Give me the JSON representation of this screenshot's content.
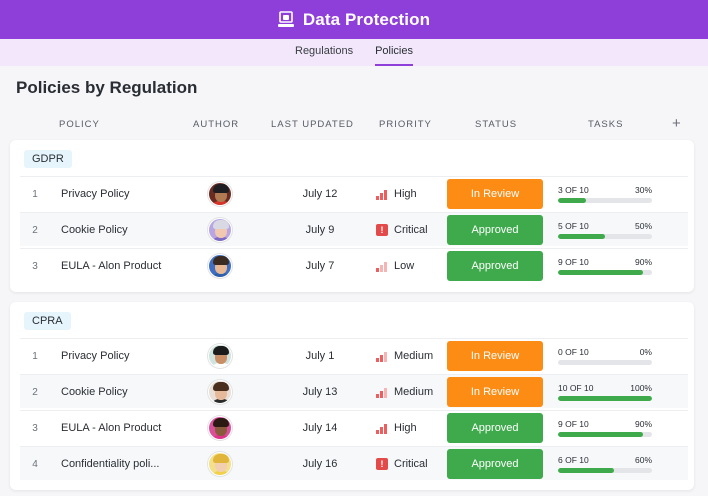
{
  "header": {
    "title": "Data Protection",
    "icon": "laptop-shield-icon"
  },
  "tabs": [
    {
      "label": "Regulations",
      "active": false
    },
    {
      "label": "Policies",
      "active": true
    }
  ],
  "page": {
    "title": "Policies by Regulation"
  },
  "columns": {
    "policy": "POLICY",
    "author": "AUTHOR",
    "updated": "LAST UPDATED",
    "priority": "PRIORITY",
    "status": "STATUS",
    "tasks": "TASKS",
    "add": "+"
  },
  "colors": {
    "accent": "#8f3fd9",
    "in_review": "#fd8c14",
    "approved": "#3eaa4c",
    "priority": "#ee5e5e"
  },
  "groups": [
    {
      "name": "GDPR",
      "rows": [
        {
          "num": "1",
          "name": "Privacy Policy",
          "date": "July 12",
          "priority": "High",
          "priority_level": 3,
          "status": "In Review",
          "status_type": "review",
          "tasks_text": "3 OF 10",
          "percent_text": "30%",
          "progress": 30,
          "avatar": {
            "skin": "#b07a52",
            "hair": "#1e1e22",
            "shirt": "#d9342b",
            "bg": "#6a2c22"
          }
        },
        {
          "num": "2",
          "name": "Cookie Policy",
          "date": "July 9",
          "priority": "Critical",
          "priority_level": 4,
          "status": "Approved",
          "status_type": "approved",
          "tasks_text": "5 OF 10",
          "percent_text": "50%",
          "progress": 50,
          "avatar": {
            "skin": "#f0c9b0",
            "hair": "#d9d9e3",
            "shirt": "#7e6bc4",
            "bg": "#b7a6e3"
          }
        },
        {
          "num": "3",
          "name": "EULA - Alon Product",
          "date": "July 7",
          "priority": "Low",
          "priority_level": 1,
          "status": "Approved",
          "status_type": "approved",
          "tasks_text": "9 OF 10",
          "percent_text": "90%",
          "progress": 90,
          "avatar": {
            "skin": "#e8b894",
            "hair": "#3a2a20",
            "shirt": "#2f5fa8",
            "bg": "#3e6fc4"
          }
        }
      ]
    },
    {
      "name": "CPRA",
      "rows": [
        {
          "num": "1",
          "name": "Privacy Policy",
          "date": "July 1",
          "priority": "Medium",
          "priority_level": 2,
          "status": "In Review",
          "status_type": "review",
          "tasks_text": "0 OF 10",
          "percent_text": "0%",
          "progress": 0,
          "avatar": {
            "skin": "#c98e66",
            "hair": "#1b1b1b",
            "shirt": "#ffffff",
            "bg": "#cfe3df"
          }
        },
        {
          "num": "2",
          "name": "Cookie Policy",
          "date": "July 13",
          "priority": "Medium",
          "priority_level": 2,
          "status": "In Review",
          "status_type": "review",
          "tasks_text": "10 OF 10",
          "percent_text": "100%",
          "progress": 100,
          "avatar": {
            "skin": "#e6b99a",
            "hair": "#4a2e1e",
            "shirt": "#2b2b2b",
            "bg": "#e8e0d8"
          }
        },
        {
          "num": "3",
          "name": "EULA - Alon Product",
          "date": "July 14",
          "priority": "High",
          "priority_level": 3,
          "status": "Approved",
          "status_type": "approved",
          "tasks_text": "9 OF 10",
          "percent_text": "90%",
          "progress": 90,
          "avatar": {
            "skin": "#8a5a3c",
            "hair": "#2a1a12",
            "shirt": "#e0338a",
            "bg": "#d94f9a"
          }
        },
        {
          "num": "4",
          "name": "Confidentiality poli...",
          "date": "July 16",
          "priority": "Critical",
          "priority_level": 4,
          "status": "Approved",
          "status_type": "approved",
          "tasks_text": "6 OF 10",
          "percent_text": "60%",
          "progress": 60,
          "avatar": {
            "skin": "#f2cfb0",
            "hair": "#e0b53a",
            "shirt": "#f2d14a",
            "bg": "#f5e08a"
          }
        }
      ]
    }
  ]
}
